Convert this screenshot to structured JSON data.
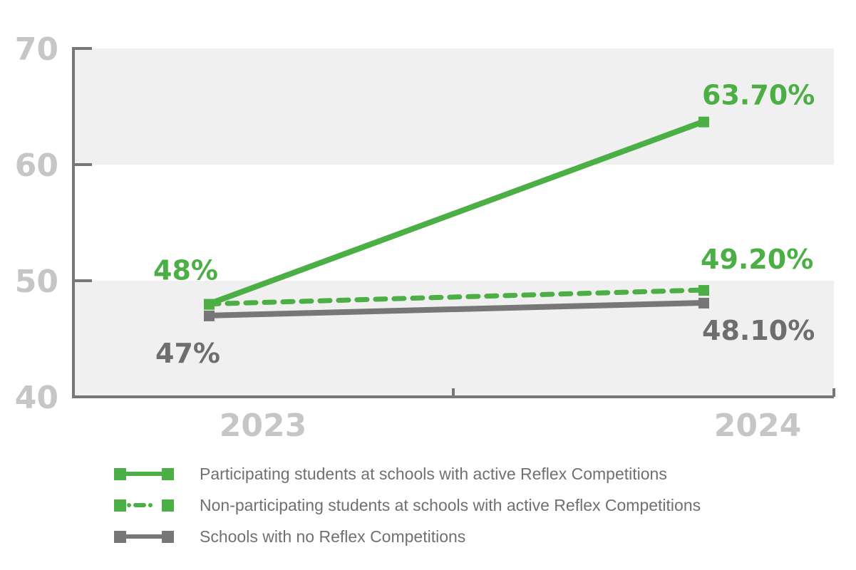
{
  "chart_data": {
    "type": "line",
    "title": "",
    "xlabel": "",
    "ylabel": "",
    "categories": [
      "2023",
      "2024"
    ],
    "ylim": [
      40,
      70
    ],
    "yticks": [
      40,
      50,
      60,
      70
    ],
    "ytick_labels": [
      "40",
      "50",
      "60",
      "70"
    ],
    "grid": "alternating bands",
    "legend_placement": "bottom",
    "series": [
      {
        "name": "Participating students at schools with active Reflex Competitions",
        "values": [
          48,
          63.7
        ],
        "labels": [
          "48%",
          "63.70%"
        ],
        "color": "#4caf45",
        "style": "solid",
        "label_color": "#4caf45"
      },
      {
        "name": "Non-participating students at schools with active Reflex Competitions",
        "values": [
          48,
          49.2
        ],
        "labels": [
          "",
          "49.20%"
        ],
        "color": "#4caf45",
        "style": "dashed",
        "label_color": "#4caf45"
      },
      {
        "name": "Schools with no Reflex Competitions",
        "values": [
          47,
          48.1
        ],
        "labels": [
          "47%",
          "48.10%"
        ],
        "color": "#777777",
        "style": "solid",
        "label_color": "#6e6e6e"
      }
    ],
    "colors": {
      "band": "#f0f0f0",
      "axis": "#777777",
      "tick_text": "#c6c6c6"
    }
  }
}
